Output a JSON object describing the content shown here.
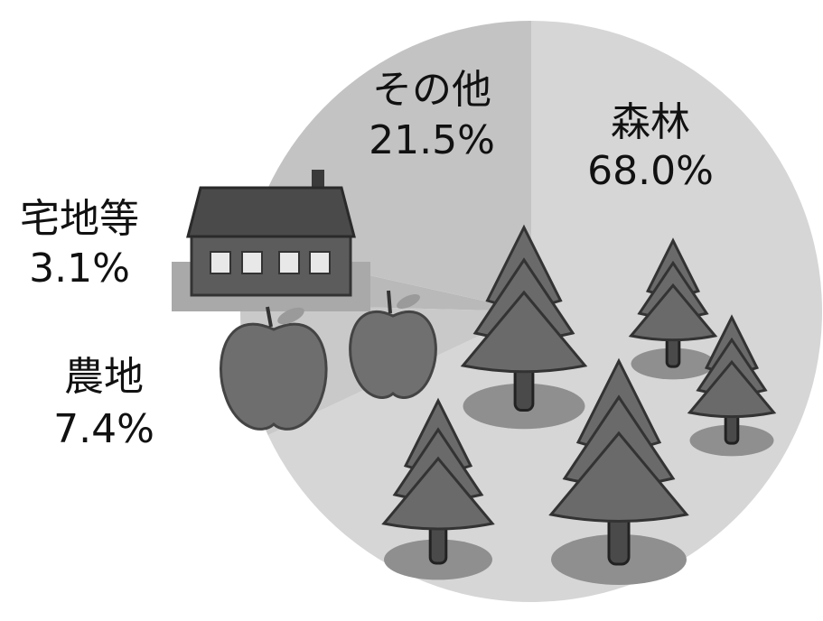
{
  "chart_data": {
    "type": "pie",
    "categories": [
      "森林",
      "農地",
      "宅地等",
      "その他"
    ],
    "values": [
      68.0,
      7.4,
      3.1,
      21.5
    ],
    "value_labels": [
      "68.0%",
      "7.4%",
      "3.1%",
      "21.5%"
    ],
    "colors": [
      "#d6d6d6",
      "#c9c9c9",
      "#b9b9b9",
      "#c3c3c3"
    ]
  }
}
